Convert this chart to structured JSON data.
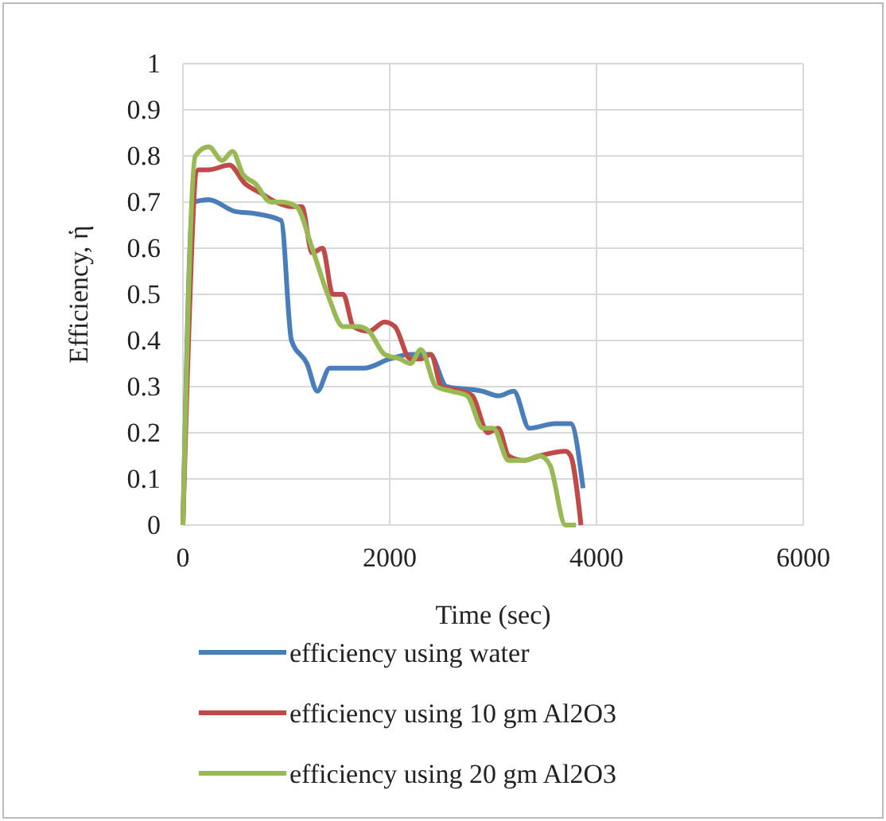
{
  "chart_data": {
    "type": "line",
    "xlabel": "Time (sec)",
    "ylabel": "Efficiency, ἡ",
    "xlim": [
      0,
      6000
    ],
    "xticks": [
      0,
      2000,
      4000,
      6000
    ],
    "ylim": [
      0,
      1
    ],
    "yticks": [
      0,
      0.1,
      0.2,
      0.3,
      0.4,
      0.5,
      0.6,
      0.7,
      0.8,
      0.9,
      1
    ],
    "grid": true,
    "legend": "bottom",
    "marker": "none",
    "line_style": "solid",
    "series": [
      {
        "name": "efficiency using water",
        "color": "#4a7ebb",
        "x": [
          0,
          100,
          250,
          500,
          700,
          950,
          1050,
          1200,
          1300,
          1420,
          1750,
          2000,
          2200,
          2390,
          2550,
          2900,
          3050,
          3200,
          3350,
          3600,
          3750,
          3870
        ],
        "values": [
          0,
          0.7,
          0.705,
          0.68,
          0.675,
          0.66,
          0.4,
          0.35,
          0.29,
          0.34,
          0.34,
          0.36,
          0.37,
          0.37,
          0.3,
          0.29,
          0.28,
          0.29,
          0.21,
          0.22,
          0.22,
          0.08
        ]
      },
      {
        "name": "efficiency using 10 gm Al2O3",
        "color": "#be4b48",
        "x": [
          0,
          150,
          250,
          450,
          600,
          750,
          900,
          1050,
          1150,
          1250,
          1350,
          1450,
          1550,
          1650,
          1800,
          1950,
          2050,
          2200,
          2300,
          2400,
          2500,
          2700,
          2800,
          2950,
          3050,
          3150,
          3300,
          3450,
          3700,
          3750,
          3850
        ],
        "values": [
          0,
          0.77,
          0.77,
          0.78,
          0.74,
          0.72,
          0.7,
          0.69,
          0.69,
          0.59,
          0.6,
          0.5,
          0.5,
          0.43,
          0.42,
          0.44,
          0.43,
          0.36,
          0.36,
          0.37,
          0.3,
          0.29,
          0.28,
          0.2,
          0.21,
          0.15,
          0.14,
          0.15,
          0.16,
          0.15,
          0
        ]
      },
      {
        "name": "efficiency using 20 gm Al2O3",
        "color": "#98b954",
        "x": [
          0,
          120,
          250,
          380,
          480,
          580,
          700,
          850,
          950,
          1100,
          1250,
          1400,
          1550,
          1700,
          1800,
          1950,
          2100,
          2200,
          2300,
          2450,
          2600,
          2750,
          2900,
          3000,
          3150,
          3300,
          3450,
          3550,
          3700,
          3800
        ],
        "values": [
          0,
          0.8,
          0.82,
          0.79,
          0.81,
          0.76,
          0.74,
          0.7,
          0.7,
          0.69,
          0.6,
          0.5,
          0.43,
          0.43,
          0.42,
          0.37,
          0.36,
          0.35,
          0.38,
          0.3,
          0.29,
          0.28,
          0.21,
          0.21,
          0.14,
          0.14,
          0.15,
          0.13,
          0,
          0
        ]
      }
    ]
  }
}
